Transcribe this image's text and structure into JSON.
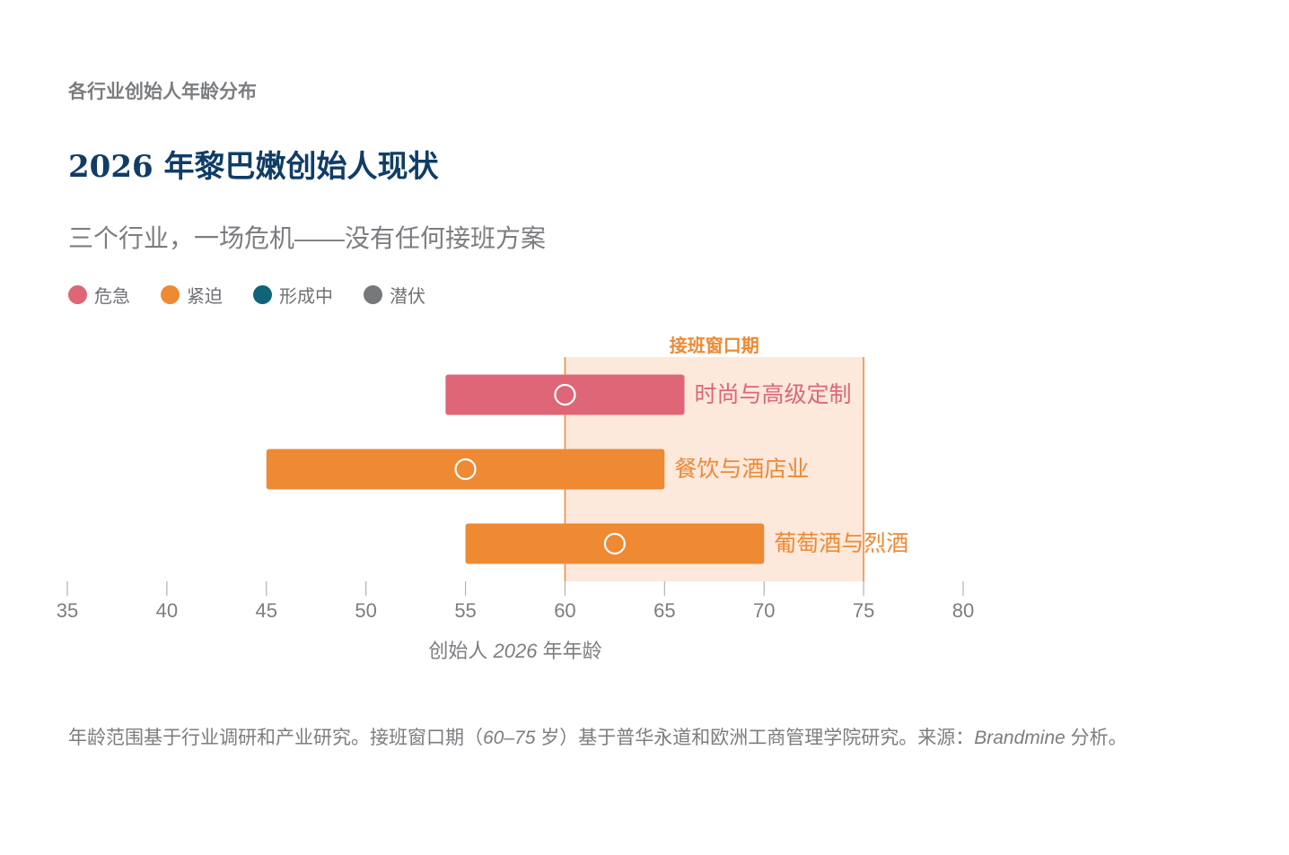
{
  "header": {
    "kicker": "各行业创始人年龄分布",
    "title": "2026 年黎巴嫩创始人现状",
    "subtitle": "三个行业，一场危机——没有任何接班方案"
  },
  "legend": [
    {
      "label": "危急",
      "color": "#de6677"
    },
    {
      "label": "紧迫",
      "color": "#ee8934"
    },
    {
      "label": "形成中",
      "color": "#0f6478"
    },
    {
      "label": "潜伏",
      "color": "#76797c"
    }
  ],
  "chart_data": {
    "type": "range-bar",
    "xlabel_prefix": "创始人",
    "xlabel_year": "2026",
    "xlabel_suffix": "年年龄",
    "xlim": [
      35,
      80
    ],
    "xticks": [
      35,
      40,
      45,
      50,
      55,
      60,
      65,
      70,
      75,
      80
    ],
    "window": {
      "label": "接班窗口期",
      "start": 60,
      "end": 75
    },
    "series": [
      {
        "name": "时尚与高级定制",
        "min": 54,
        "max": 66,
        "median": 60,
        "status": "危急",
        "color": "#de6677"
      },
      {
        "name": "餐饮与酒店业",
        "min": 45,
        "max": 65,
        "median": 55,
        "status": "紧迫",
        "color": "#ee8934"
      },
      {
        "name": "葡萄酒与烈酒",
        "min": 55,
        "max": 70,
        "median": 62.5,
        "status": "紧迫",
        "color": "#ee8934"
      }
    ],
    "grid": false
  },
  "footnote": {
    "part1": "年龄范围基于行业调研和产业研究。接班窗口期（",
    "range": "60–75",
    "part2": " 岁）基于普华永道和欧洲工商管理学院研究。来源：",
    "source": "Brandmine",
    "part3": " 分析。"
  }
}
